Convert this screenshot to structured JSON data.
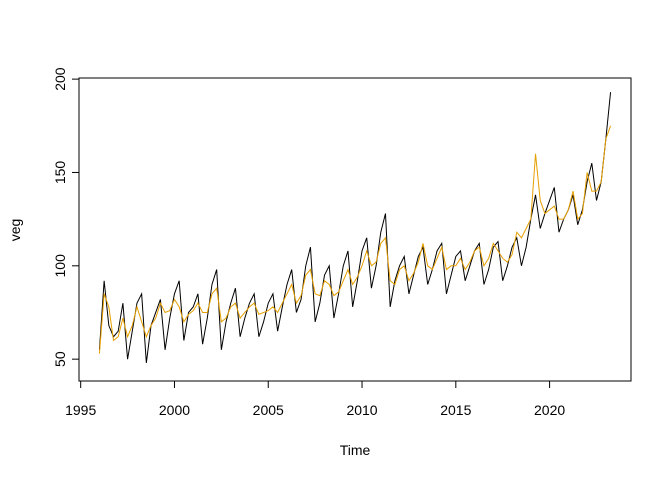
{
  "chart_data": {
    "type": "line",
    "xlabel": "Time",
    "ylabel": "veg",
    "xlim": [
      1994.91,
      2024.34
    ],
    "ylim": [
      38.3,
      200.6
    ],
    "xticks": [
      1995,
      2000,
      2005,
      2010,
      2015,
      2020
    ],
    "yticks": [
      50,
      100,
      150,
      200
    ],
    "x": [
      1996,
      1996.25,
      1996.5,
      1996.75,
      1997,
      1997.25,
      1997.5,
      1997.75,
      1998,
      1998.25,
      1998.5,
      1998.75,
      1999,
      1999.25,
      1999.5,
      1999.75,
      2000,
      2000.25,
      2000.5,
      2000.75,
      2001,
      2001.25,
      2001.5,
      2001.75,
      2002,
      2002.25,
      2002.5,
      2002.75,
      2003,
      2003.25,
      2003.5,
      2003.75,
      2004,
      2004.25,
      2004.5,
      2004.75,
      2005,
      2005.25,
      2005.5,
      2005.75,
      2006,
      2006.25,
      2006.5,
      2006.75,
      2007,
      2007.25,
      2007.5,
      2007.75,
      2008,
      2008.25,
      2008.5,
      2008.75,
      2009,
      2009.25,
      2009.5,
      2009.75,
      2010,
      2010.25,
      2010.5,
      2010.75,
      2011,
      2011.25,
      2011.5,
      2011.75,
      2012,
      2012.25,
      2012.5,
      2012.75,
      2013,
      2013.25,
      2013.5,
      2013.75,
      2014,
      2014.25,
      2014.5,
      2014.75,
      2015,
      2015.25,
      2015.5,
      2015.75,
      2016,
      2016.25,
      2016.5,
      2016.75,
      2017,
      2017.25,
      2017.5,
      2017.75,
      2018,
      2018.25,
      2018.5,
      2018.75,
      2019,
      2019.25,
      2019.5,
      2019.75,
      2020,
      2020.25,
      2020.5,
      2020.75,
      2021,
      2021.25,
      2021.5,
      2021.75,
      2022,
      2022.25,
      2022.5,
      2022.75,
      2023,
      2023.25
    ],
    "series": [
      {
        "color": "#000000",
        "values": [
          55,
          92,
          68,
          62,
          65,
          80,
          50,
          65,
          80,
          85,
          48,
          68,
          75,
          82,
          55,
          72,
          85,
          92,
          60,
          75,
          78,
          85,
          58,
          72,
          90,
          98,
          55,
          70,
          80,
          88,
          62,
          72,
          80,
          85,
          62,
          70,
          80,
          85,
          65,
          78,
          90,
          98,
          75,
          82,
          100,
          110,
          70,
          80,
          95,
          100,
          72,
          85,
          100,
          108,
          78,
          92,
          108,
          115,
          88,
          100,
          118,
          128,
          78,
          92,
          100,
          105,
          85,
          95,
          105,
          110,
          90,
          98,
          108,
          112,
          85,
          95,
          105,
          108,
          92,
          100,
          108,
          112,
          90,
          98,
          110,
          113,
          92,
          100,
          110,
          115,
          100,
          110,
          125,
          138,
          120,
          128,
          135,
          142,
          118,
          125,
          130,
          138,
          122,
          130,
          145,
          155,
          135,
          145,
          168,
          193
        ]
      },
      {
        "color": "#e69f00",
        "values": [
          53,
          85,
          78,
          60,
          62,
          72,
          62,
          68,
          78,
          70,
          62,
          68,
          72,
          80,
          75,
          76,
          82,
          78,
          70,
          74,
          76,
          80,
          75,
          75,
          85,
          88,
          70,
          72,
          78,
          80,
          72,
          75,
          78,
          80,
          74,
          75,
          76,
          78,
          75,
          80,
          85,
          90,
          80,
          84,
          95,
          98,
          85,
          84,
          92,
          90,
          84,
          86,
          92,
          98,
          90,
          94,
          100,
          108,
          100,
          102,
          112,
          115,
          92,
          90,
          98,
          100,
          92,
          96,
          102,
          112,
          100,
          98,
          104,
          110,
          98,
          100,
          100,
          104,
          98,
          102,
          108,
          110,
          100,
          104,
          112,
          108,
          104,
          102,
          106,
          118,
          115,
          120,
          125,
          160,
          135,
          128,
          130,
          132,
          125,
          125,
          130,
          140,
          125,
          128,
          150,
          140,
          140,
          145,
          168,
          175
        ]
      }
    ]
  }
}
